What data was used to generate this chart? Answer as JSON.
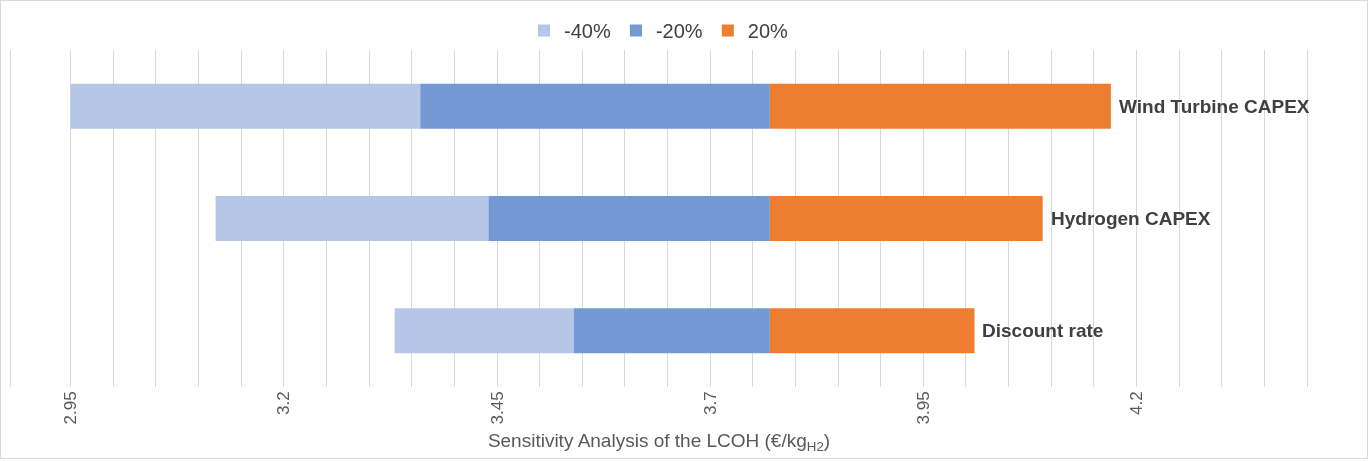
{
  "chart_data": {
    "type": "bar",
    "orientation": "horizontal",
    "xlabel": "Sensitivity Analysis of the LCOH (€/kg$_{H2}$)",
    "categories": [
      "Wind Turbine CAPEX",
      "Hydrogen CAPEX",
      "Discount rate"
    ],
    "series": [
      {
        "name": "-40%",
        "color": "#b4c7e7",
        "base": [
          2.95,
          3.12,
          3.33
        ],
        "values": [
          0.41,
          0.32,
          0.21
        ]
      },
      {
        "name": "-20%",
        "color": "#7498d2",
        "base": [
          3.36,
          3.44,
          3.54
        ],
        "values": [
          0.41,
          0.33,
          0.23
        ]
      },
      {
        "name": "20%",
        "color": "#ed7d31",
        "base": [
          3.77,
          3.77,
          3.77
        ],
        "values": [
          0.4,
          0.32,
          0.24
        ]
      }
    ],
    "xlim": [
      2.88,
      4.4
    ],
    "xticks": [
      2.95,
      {
        "value": 3.0,
        "label": null
      },
      {
        "value": 3.05,
        "label": null
      },
      {
        "value": 3.1,
        "label": null
      },
      {
        "value": 3.15,
        "label": null
      },
      3.2,
      {
        "value": 3.25,
        "label": null
      },
      {
        "value": 3.3,
        "label": null
      },
      {
        "value": 3.35,
        "label": null
      },
      {
        "value": 3.4,
        "label": null
      },
      3.45,
      {
        "value": 3.5,
        "label": null
      },
      {
        "value": 3.55,
        "label": null
      },
      {
        "value": 3.6,
        "label": null
      },
      {
        "value": 3.65,
        "label": null
      },
      3.7,
      {
        "value": 3.75,
        "label": null
      },
      {
        "value": 3.8,
        "label": null
      },
      {
        "value": 3.85,
        "label": null
      },
      {
        "value": 3.9,
        "label": null
      },
      3.95,
      {
        "value": 4.0,
        "label": null
      },
      {
        "value": 4.05,
        "label": null
      },
      {
        "value": 4.1,
        "label": null
      },
      {
        "value": 4.15,
        "label": null
      },
      4.2,
      {
        "value": 4.25,
        "label": null
      },
      {
        "value": 4.3,
        "label": null
      },
      {
        "value": 4.35,
        "label": null
      },
      {
        "value": 4.4,
        "label": null
      }
    ],
    "grid": "x",
    "legend": "top",
    "tick_labels": "x"
  }
}
